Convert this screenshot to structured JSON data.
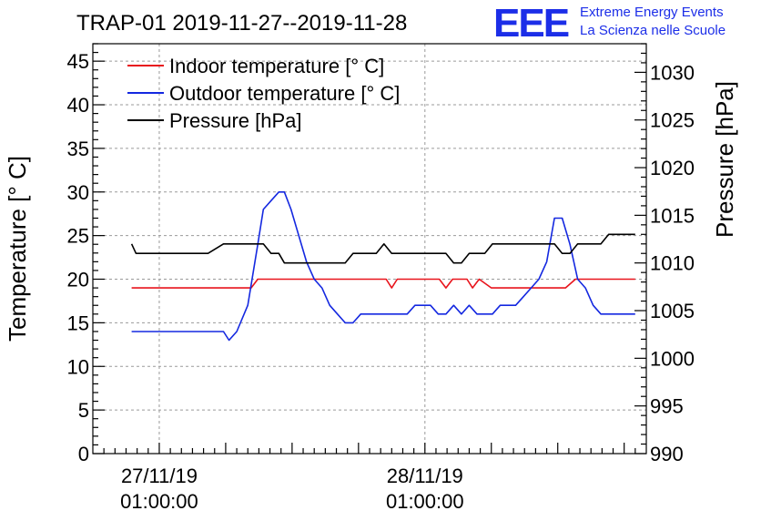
{
  "chart_data": {
    "type": "line",
    "title": "TRAP-01 2019-11-27--2019-11-28",
    "logo": {
      "mark": "EEE",
      "line1": "Extreme Energy Events",
      "line2": "La Scienza nelle Scuole",
      "color": "#1c2ee8"
    },
    "ylabel": "Temperature [° C]",
    "y2label": "Pressure [hPa]",
    "ylim": [
      0,
      47
    ],
    "y2lim": [
      990,
      1033
    ],
    "yticks": [
      0,
      5,
      10,
      15,
      20,
      25,
      30,
      35,
      40,
      45
    ],
    "y2ticks": [
      990,
      995,
      1000,
      1005,
      1010,
      1015,
      1020,
      1025,
      1030
    ],
    "xlim": [
      -2,
      48
    ],
    "xticks": [
      {
        "x": 4,
        "date": "27/11/19",
        "time": "01:00:00"
      },
      {
        "x": 28,
        "date": "28/11/19",
        "time": "01:00:00"
      }
    ],
    "xgrid": [
      4,
      28
    ],
    "legend": [
      "Indoor temperature [° C]",
      "Outdoor temperature [° C]",
      "Pressure [hPa]"
    ],
    "series": [
      {
        "name": "Indoor temperature [° C]",
        "axis": "left",
        "color": "#e8141c",
        "x": [
          1.5,
          12.3,
          12.9,
          24.5,
          25.0,
          25.5,
          26.5,
          29.3,
          29.9,
          30.5,
          31.8,
          32.3,
          32.9,
          34.0,
          40.7,
          41.6,
          47.0
        ],
        "y": [
          19,
          19,
          20,
          20,
          19,
          20,
          20,
          20,
          19,
          20,
          20,
          19,
          20,
          19,
          19,
          20,
          20
        ]
      },
      {
        "name": "Outdoor temperature [° C]",
        "axis": "left",
        "color": "#1428e0",
        "x": [
          1.5,
          5.1,
          5.8,
          6.5,
          7.0,
          7.7,
          8.4,
          9.8,
          10.3,
          11.0,
          12.0,
          12.9,
          13.4,
          14.1,
          14.8,
          15.3,
          15.9,
          16.6,
          17.3,
          18.0,
          18.7,
          19.4,
          20.1,
          20.8,
          21.5,
          22.2,
          22.9,
          23.6,
          24.3,
          25.0,
          25.7,
          26.4,
          27.1,
          27.8,
          28.5,
          29.2,
          29.9,
          30.6,
          31.3,
          32.0,
          32.7,
          33.4,
          34.1,
          34.8,
          35.5,
          36.2,
          36.9,
          37.6,
          38.3,
          39.0,
          39.7,
          40.4,
          41.1,
          41.8,
          42.5,
          43.2,
          43.9,
          44.6,
          45.3,
          46.0,
          47.0
        ],
        "y": [
          14,
          14,
          14,
          14,
          14,
          14,
          14,
          14,
          13,
          14,
          17,
          24,
          28,
          29,
          30,
          30,
          28,
          25,
          22,
          20,
          19,
          17,
          16,
          15,
          15,
          16,
          16,
          16,
          16,
          16,
          16,
          16,
          17,
          17,
          17,
          16,
          16,
          17,
          16,
          17,
          16,
          16,
          16,
          17,
          17,
          17,
          18,
          19,
          20,
          22,
          27,
          27,
          24,
          20,
          19,
          17,
          16,
          16,
          16,
          16,
          16
        ]
      },
      {
        "name": "Pressure [hPa]",
        "axis": "right",
        "color": "#000000",
        "x": [
          1.5,
          1.9,
          5.1,
          5.8,
          6.5,
          7.0,
          7.7,
          8.4,
          9.8,
          10.3,
          11.0,
          12.0,
          12.9,
          13.4,
          14.1,
          14.8,
          15.3,
          15.9,
          16.6,
          17.3,
          18.0,
          18.7,
          19.4,
          20.1,
          20.8,
          21.5,
          22.2,
          22.9,
          23.6,
          24.3,
          25.0,
          25.7,
          26.4,
          27.1,
          27.8,
          28.5,
          29.2,
          29.9,
          30.6,
          31.3,
          32.0,
          32.7,
          33.4,
          34.1,
          34.8,
          35.5,
          36.2,
          36.9,
          37.6,
          38.3,
          39.0,
          39.7,
          40.4,
          41.1,
          41.8,
          42.5,
          43.2,
          43.9,
          44.6,
          45.3,
          46.0,
          47.0
        ],
        "y": [
          1012,
          1011,
          1011,
          1011,
          1011,
          1011,
          1011,
          1011,
          1012,
          1012,
          1012,
          1012,
          1012,
          1012,
          1011,
          1011,
          1010,
          1010,
          1010,
          1010,
          1010,
          1010,
          1010,
          1010,
          1010,
          1011,
          1011,
          1011,
          1011,
          1012,
          1011,
          1011,
          1011,
          1011,
          1011,
          1011,
          1011,
          1011,
          1010,
          1010,
          1011,
          1011,
          1011,
          1012,
          1012,
          1012,
          1012,
          1012,
          1012,
          1012,
          1012,
          1012,
          1011,
          1011,
          1012,
          1012,
          1012,
          1012,
          1013,
          1013,
          1013,
          1013
        ]
      }
    ]
  }
}
